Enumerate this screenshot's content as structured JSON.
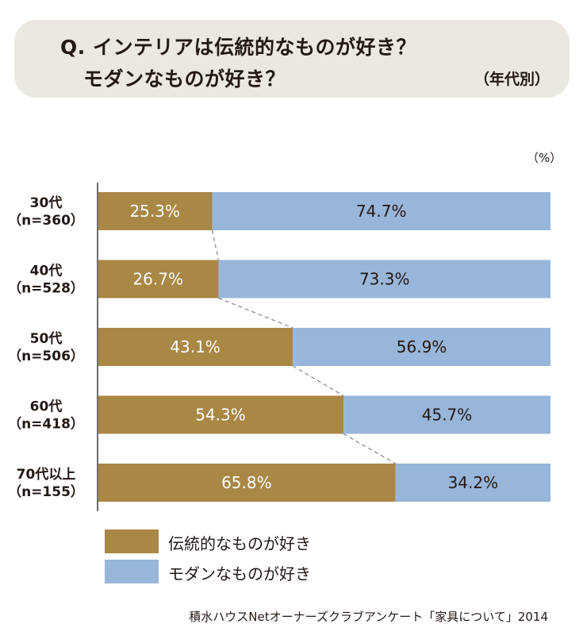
{
  "title": {
    "line1": "Q. インテリアは伝統的なものが好き？",
    "line2": "モダンなものが好き？",
    "subtitle": "（年代別）"
  },
  "unit_label": "（%）",
  "colors": {
    "traditional": "#a98745",
    "modern": "#98b6d9",
    "title_bg": "#ebe8e1"
  },
  "legend": [
    {
      "label": "伝統的なものが好き",
      "color": "#a98745"
    },
    {
      "label": "モダンなものが好き",
      "color": "#98b6d9"
    }
  ],
  "source": "積水ハウスNetオーナーズクラブアンケート「家具について」2014",
  "chart_data": {
    "type": "bar",
    "orientation": "horizontal",
    "stacked": true,
    "percent_stacked": true,
    "categories": [
      {
        "age": "30代",
        "n": "（n=360）"
      },
      {
        "age": "40代",
        "n": "（n=528）"
      },
      {
        "age": "50代",
        "n": "（n=506）"
      },
      {
        "age": "60代",
        "n": "（n=418）"
      },
      {
        "age": "70代以上",
        "n": "（n=155）"
      }
    ],
    "series": [
      {
        "name": "伝統的なものが好き",
        "values": [
          25.3,
          26.7,
          43.1,
          54.3,
          65.8
        ],
        "labels": [
          "25.3%",
          "26.7%",
          "43.1%",
          "54.3%",
          "65.8%"
        ]
      },
      {
        "name": "モダンなものが好き",
        "values": [
          74.7,
          73.3,
          56.9,
          45.7,
          34.2
        ],
        "labels": [
          "74.7%",
          "73.3%",
          "56.9%",
          "45.7%",
          "34.2%"
        ]
      }
    ],
    "xlim": [
      0,
      100
    ],
    "connector_lines": "dashed",
    "grid": false
  }
}
